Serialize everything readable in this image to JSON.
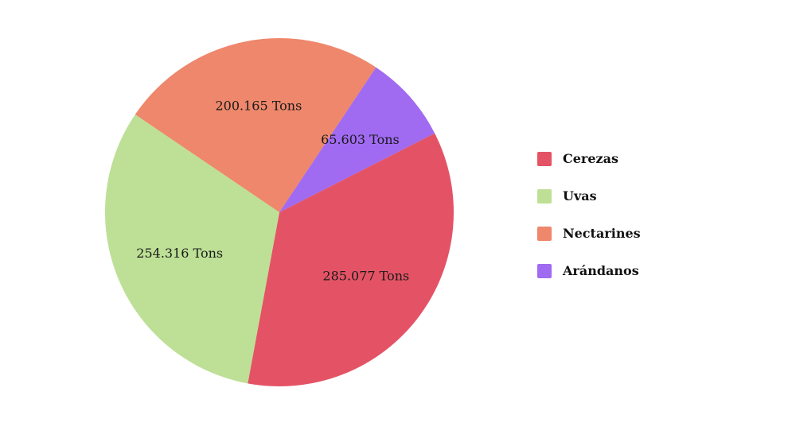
{
  "chart_data": {
    "type": "pie",
    "categories": [
      "Cerezas",
      "Uvas",
      "Nectarines",
      "Arándanos"
    ],
    "values": [
      285.077,
      254.316,
      200.165,
      65.603
    ],
    "value_labels": [
      "285.077 Tons",
      "254.316 Tons",
      "200.165 Tons",
      "65.603 Tons"
    ],
    "colors": [
      "#e45365",
      "#bde096",
      "#ee876b",
      "#a06af1"
    ],
    "legend_position": "right"
  }
}
